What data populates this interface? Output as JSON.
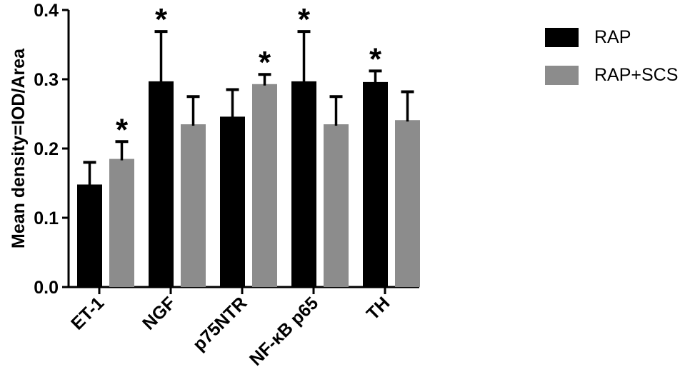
{
  "chart_data": {
    "type": "bar",
    "title": "",
    "xlabel": "",
    "ylabel": "Mean density=IOD/Area",
    "ylim": [
      0.0,
      0.4
    ],
    "yticks": [
      "0.0",
      "0.1",
      "0.2",
      "0.3",
      "0.4"
    ],
    "categories": [
      "ET-1",
      "NGF",
      "p75NTR",
      "NF-κB p65",
      "TH"
    ],
    "series": [
      {
        "name": "RAP",
        "color": "#000000",
        "values": [
          0.148,
          0.297,
          0.246,
          0.297,
          0.296
        ],
        "error": [
          0.032,
          0.072,
          0.039,
          0.072,
          0.016
        ],
        "significant": [
          false,
          true,
          false,
          true,
          true
        ]
      },
      {
        "name": "RAP+SCS",
        "color": "#8c8c8c",
        "values": [
          0.185,
          0.235,
          0.293,
          0.235,
          0.241
        ],
        "error": [
          0.025,
          0.04,
          0.014,
          0.04,
          0.041
        ],
        "significant": [
          true,
          false,
          true,
          false,
          false
        ]
      }
    ],
    "annotation_symbol": "*",
    "legend_position": "top-right",
    "grid": false
  },
  "legend": {
    "items": [
      {
        "label": "RAP",
        "color": "#000000"
      },
      {
        "label": "RAP+SCS",
        "color": "#8c8c8c"
      }
    ]
  }
}
